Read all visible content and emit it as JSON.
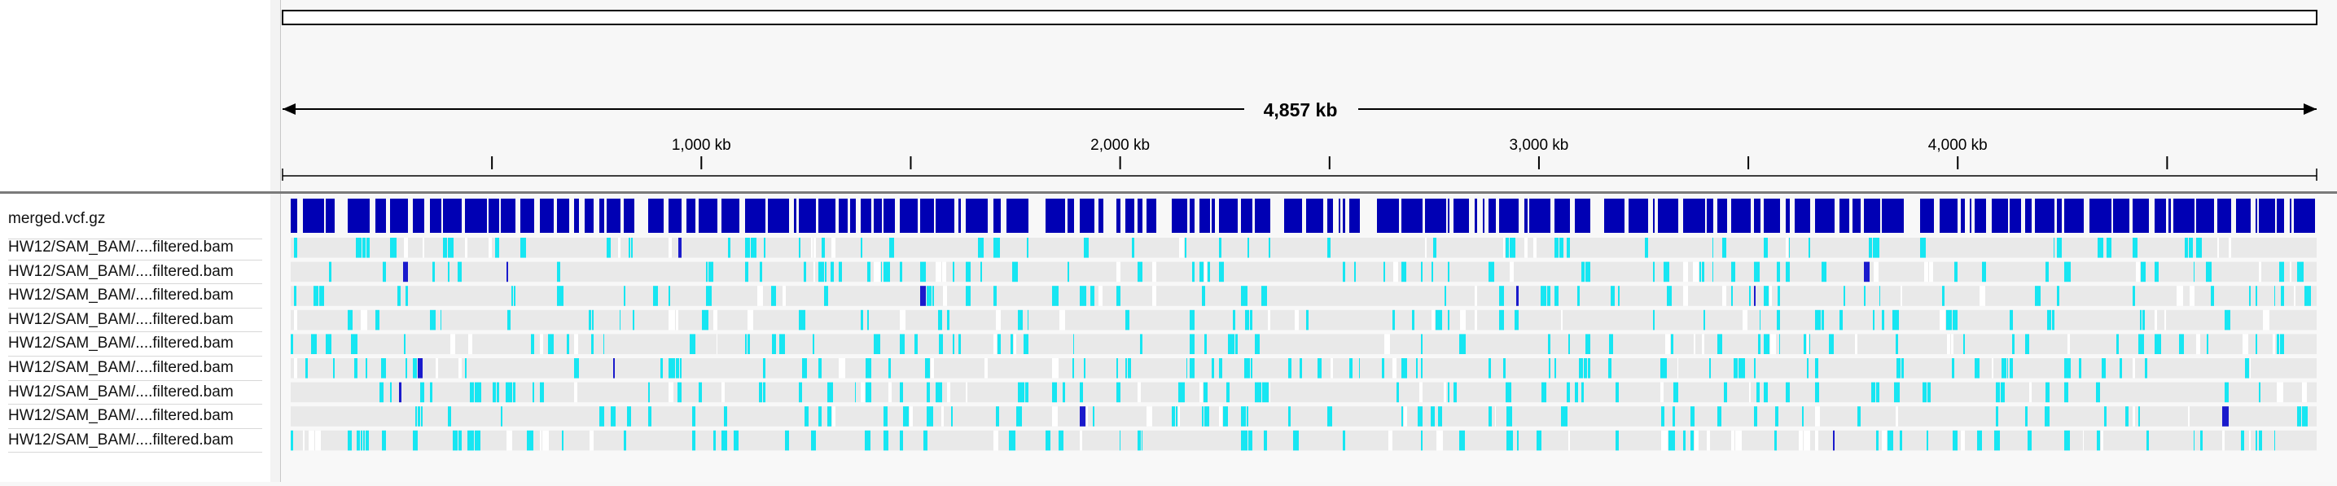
{
  "ruler": {
    "span_label": "4,857 kb",
    "ticks": [
      {
        "label": "1,000 kb",
        "kb": 1000
      },
      {
        "label": "2,000 kb",
        "kb": 2000
      },
      {
        "label": "3,000 kb",
        "kb": 3000
      },
      {
        "label": "4,000 kb",
        "kb": 4000
      }
    ],
    "minor_ticks_kb": [
      500,
      1500,
      2500,
      3500,
      4500
    ],
    "total_kb": 4857
  },
  "tracks": {
    "variant_track": {
      "name": "merged.vcf.gz"
    },
    "samples": [
      {
        "name": "HW12/SAM_BAM/....filtered.bam",
        "seed": 11
      },
      {
        "name": "HW12/SAM_BAM/....filtered.bam",
        "seed": 23
      },
      {
        "name": "HW12/SAM_BAM/....filtered.bam",
        "seed": 37
      },
      {
        "name": "HW12/SAM_BAM/....filtered.bam",
        "seed": 41
      },
      {
        "name": "HW12/SAM_BAM/....filtered.bam",
        "seed": 53
      },
      {
        "name": "HW12/SAM_BAM/....filtered.bam",
        "seed": 67
      },
      {
        "name": "HW12/SAM_BAM/....filtered.bam",
        "seed": 71
      },
      {
        "name": "HW12/SAM_BAM/....filtered.bam",
        "seed": 83
      },
      {
        "name": "HW12/SAM_BAM/....filtered.bam",
        "seed": 97
      }
    ]
  },
  "colors": {
    "variant_blue": "#0000b4",
    "het_cyan": "#17e6f2",
    "homvar": "#1a1acc",
    "homref": "#e9e9e9",
    "nocall": "#ffffff"
  }
}
